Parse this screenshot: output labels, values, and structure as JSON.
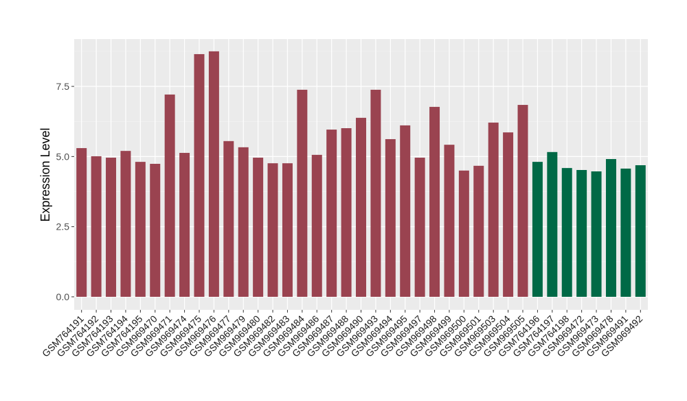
{
  "chart_data": {
    "type": "bar",
    "title": "",
    "xlabel": "",
    "ylabel": "Expression Level",
    "ylim": [
      0,
      9.2
    ],
    "yticks": [
      0.0,
      2.5,
      5.0,
      7.5
    ],
    "ytick_labels": [
      "0.0",
      "2.5",
      "5.0",
      "7.5"
    ],
    "grid": true,
    "categories": [
      "GSM764191",
      "GSM764192",
      "GSM764193",
      "GSM764194",
      "GSM764195",
      "GSM969470",
      "GSM969471",
      "GSM969474",
      "GSM969475",
      "GSM969476",
      "GSM969477",
      "GSM969479",
      "GSM969480",
      "GSM969482",
      "GSM969483",
      "GSM969484",
      "GSM969486",
      "GSM969487",
      "GSM969488",
      "GSM969490",
      "GSM969493",
      "GSM969494",
      "GSM969495",
      "GSM969497",
      "GSM969498",
      "GSM969499",
      "GSM969500",
      "GSM969501",
      "GSM969503",
      "GSM969504",
      "GSM969505",
      "GSM764196",
      "GSM764197",
      "GSM764198",
      "GSM969472",
      "GSM969473",
      "GSM969478",
      "GSM969491",
      "GSM969492"
    ],
    "values": [
      5.3,
      5.01,
      4.96,
      5.2,
      4.81,
      4.74,
      7.21,
      5.13,
      8.65,
      8.75,
      5.55,
      5.33,
      4.96,
      4.76,
      4.76,
      7.38,
      5.06,
      5.96,
      6.01,
      6.38,
      7.38,
      5.62,
      6.11,
      4.96,
      6.77,
      5.42,
      4.5,
      4.67,
      6.21,
      5.86,
      6.84,
      4.81,
      5.16,
      4.59,
      4.52,
      4.47,
      4.91,
      4.57,
      4.69
    ],
    "groups": [
      "a",
      "a",
      "a",
      "a",
      "a",
      "a",
      "a",
      "a",
      "a",
      "a",
      "a",
      "a",
      "a",
      "a",
      "a",
      "a",
      "a",
      "a",
      "a",
      "a",
      "a",
      "a",
      "a",
      "a",
      "a",
      "a",
      "a",
      "a",
      "a",
      "a",
      "a",
      "b",
      "b",
      "b",
      "b",
      "b",
      "b",
      "b",
      "b"
    ],
    "colors": {
      "a": "#9A4350",
      "b": "#006946"
    }
  }
}
